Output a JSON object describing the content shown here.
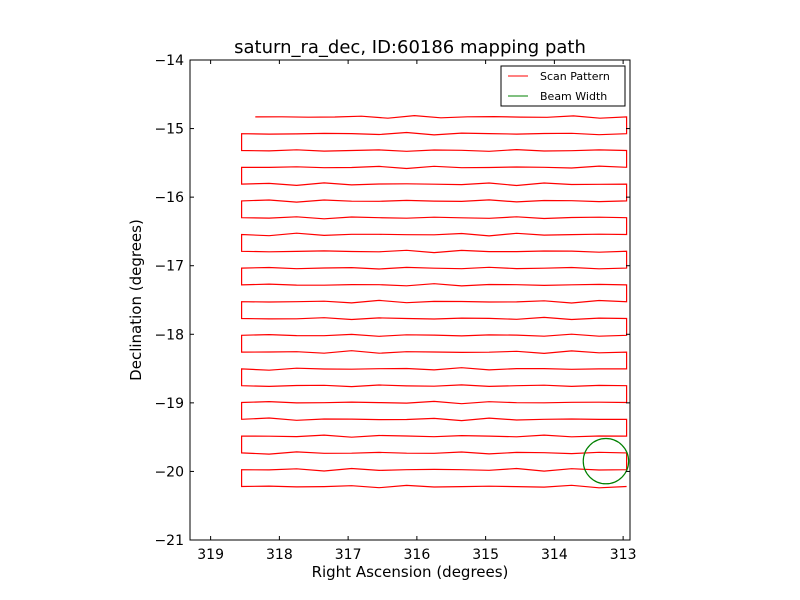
{
  "chart_data": {
    "type": "line",
    "title": "saturn_ra_dec, ID:60186 mapping path",
    "xlabel": "Right Ascension (degrees)",
    "ylabel": "Declination (degrees)",
    "xlim": [
      319.3,
      312.9
    ],
    "ylim": [
      -21,
      -14
    ],
    "x_ticks": [
      319,
      318,
      317,
      316,
      315,
      314,
      313
    ],
    "x_tick_labels": [
      "319",
      "318",
      "317",
      "316",
      "315",
      "314",
      "313"
    ],
    "y_ticks": [
      -14,
      -15,
      -16,
      -17,
      -18,
      -19,
      -20,
      -21
    ],
    "y_tick_labels": [
      "−14",
      "−15",
      "−16",
      "−17",
      "−18",
      "−19",
      "−20",
      "−21"
    ],
    "legend_position": "top-right",
    "series": [
      {
        "name": "Scan Pattern",
        "color": "#ff0000",
        "scan": {
          "dec_start": -14.83,
          "dec_end": -20.22,
          "row_count": 23,
          "ra_west": 318.55,
          "ra_east": 312.95,
          "ra_start": 318.35
        }
      },
      {
        "name": "Beam Width",
        "color": "#008000",
        "center": [
          313.25,
          -19.85
        ],
        "radius_deg": 0.33
      }
    ]
  }
}
